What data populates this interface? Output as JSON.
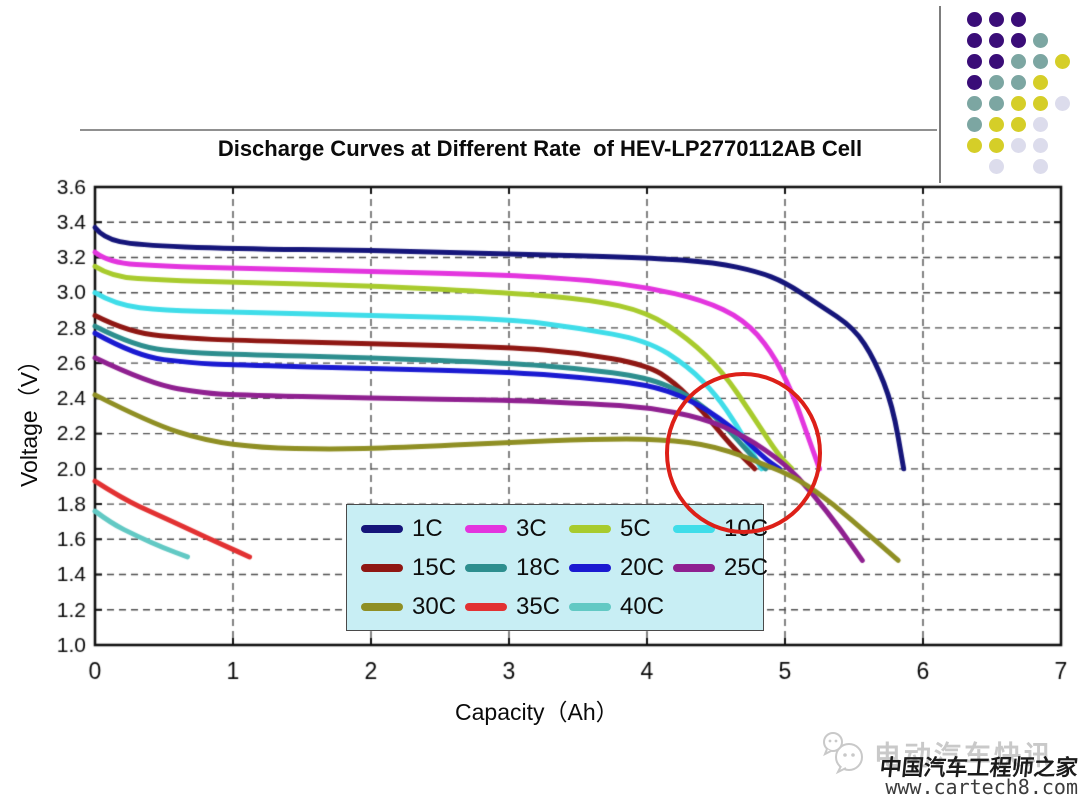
{
  "page": {
    "background_color": "#ffffff"
  },
  "header": {
    "divider_line": "horizontal-rule-above-title",
    "separator_line": "vertical-rule-top-right"
  },
  "chart_data": {
    "type": "line",
    "title": "Discharge Curves at Different Rate  of HEV-LP2770112AB Cell",
    "xlabel": "Capacity（Ah）",
    "ylabel": "Voltage（V）",
    "xlim": [
      0,
      7
    ],
    "ylim": [
      1.0,
      3.6
    ],
    "xtick_labels": [
      "0",
      "1",
      "2",
      "3",
      "4",
      "5",
      "6",
      "7"
    ],
    "ytick_labels": [
      "3.6",
      "3.4",
      "3.2",
      "3.0",
      "2.8",
      "2.6",
      "2.4",
      "2.2",
      "2.0",
      "1.8",
      "1.6",
      "1.4",
      "1.2",
      "1.0"
    ],
    "grid": "dashed",
    "grid_color": "#4d4d4d",
    "axis_color": "#111111",
    "legend_position": "inside-bottom",
    "series": [
      {
        "name": "1C",
        "color": "#15157a",
        "points": [
          [
            0,
            3.37
          ],
          [
            0.06,
            3.31
          ],
          [
            0.3,
            3.27
          ],
          [
            1,
            3.25
          ],
          [
            2,
            3.24
          ],
          [
            3,
            3.22
          ],
          [
            4,
            3.2
          ],
          [
            4.5,
            3.17
          ],
          [
            4.8,
            3.12
          ],
          [
            5.0,
            3.06
          ],
          [
            5.25,
            2.93
          ],
          [
            5.5,
            2.8
          ],
          [
            5.65,
            2.62
          ],
          [
            5.78,
            2.36
          ],
          [
            5.86,
            2.0
          ]
        ]
      },
      {
        "name": "3C",
        "color": "#e335de",
        "points": [
          [
            0,
            3.23
          ],
          [
            0.1,
            3.17
          ],
          [
            0.5,
            3.15
          ],
          [
            1,
            3.14
          ],
          [
            2,
            3.12
          ],
          [
            3,
            3.1
          ],
          [
            3.6,
            3.07
          ],
          [
            4.0,
            3.03
          ],
          [
            4.4,
            2.96
          ],
          [
            4.7,
            2.85
          ],
          [
            4.9,
            2.67
          ],
          [
            5.05,
            2.44
          ],
          [
            5.15,
            2.22
          ],
          [
            5.25,
            2.0
          ]
        ]
      },
      {
        "name": "5C",
        "color": "#a8cb2d",
        "points": [
          [
            0,
            3.15
          ],
          [
            0.12,
            3.09
          ],
          [
            0.5,
            3.07
          ],
          [
            1,
            3.06
          ],
          [
            2,
            3.04
          ],
          [
            3,
            3.0
          ],
          [
            3.6,
            2.96
          ],
          [
            4.0,
            2.89
          ],
          [
            4.3,
            2.74
          ],
          [
            4.55,
            2.55
          ],
          [
            4.75,
            2.32
          ],
          [
            4.95,
            2.08
          ],
          [
            5.05,
            2.0
          ]
        ]
      },
      {
        "name": "10C",
        "color": "#3fdde9",
        "points": [
          [
            0,
            3.0
          ],
          [
            0.15,
            2.93
          ],
          [
            0.5,
            2.9
          ],
          [
            1,
            2.89
          ],
          [
            2,
            2.87
          ],
          [
            3,
            2.85
          ],
          [
            3.5,
            2.8
          ],
          [
            4.0,
            2.73
          ],
          [
            4.3,
            2.58
          ],
          [
            4.5,
            2.42
          ],
          [
            4.65,
            2.25
          ],
          [
            4.78,
            2.07
          ],
          [
            4.83,
            2.0
          ]
        ]
      },
      {
        "name": "15C",
        "color": "#8f1713",
        "points": [
          [
            0,
            2.87
          ],
          [
            0.25,
            2.77
          ],
          [
            0.7,
            2.74
          ],
          [
            1,
            2.73
          ],
          [
            2,
            2.71
          ],
          [
            3,
            2.69
          ],
          [
            3.5,
            2.66
          ],
          [
            4.0,
            2.59
          ],
          [
            4.2,
            2.49
          ],
          [
            4.4,
            2.33
          ],
          [
            4.6,
            2.14
          ],
          [
            4.78,
            2.0
          ]
        ]
      },
      {
        "name": "18C",
        "color": "#2d8e8e",
        "points": [
          [
            0,
            2.81
          ],
          [
            0.3,
            2.69
          ],
          [
            0.7,
            2.66
          ],
          [
            1,
            2.65
          ],
          [
            2,
            2.63
          ],
          [
            3,
            2.6
          ],
          [
            3.5,
            2.57
          ],
          [
            4.0,
            2.52
          ],
          [
            4.3,
            2.42
          ],
          [
            4.55,
            2.26
          ],
          [
            4.75,
            2.08
          ],
          [
            4.86,
            2.0
          ]
        ]
      },
      {
        "name": "20C",
        "color": "#1a1ad1",
        "points": [
          [
            0,
            2.77
          ],
          [
            0.3,
            2.64
          ],
          [
            0.7,
            2.6
          ],
          [
            1,
            2.59
          ],
          [
            2,
            2.57
          ],
          [
            3,
            2.55
          ],
          [
            3.5,
            2.52
          ],
          [
            4.0,
            2.48
          ],
          [
            4.3,
            2.4
          ],
          [
            4.6,
            2.25
          ],
          [
            4.85,
            2.06
          ],
          [
            4.96,
            2.0
          ]
        ]
      },
      {
        "name": "25C",
        "color": "#8f2090",
        "points": [
          [
            0,
            2.63
          ],
          [
            0.4,
            2.48
          ],
          [
            0.8,
            2.43
          ],
          [
            1,
            2.42
          ],
          [
            2,
            2.4
          ],
          [
            3,
            2.39
          ],
          [
            3.6,
            2.37
          ],
          [
            4.0,
            2.35
          ],
          [
            4.4,
            2.29
          ],
          [
            4.7,
            2.19
          ],
          [
            5.0,
            2.03
          ],
          [
            5.2,
            1.86
          ],
          [
            5.4,
            1.66
          ],
          [
            5.56,
            1.48
          ]
        ]
      },
      {
        "name": "30C",
        "color": "#8f8f24",
        "points": [
          [
            0,
            2.42
          ],
          [
            0.4,
            2.26
          ],
          [
            0.8,
            2.16
          ],
          [
            1.2,
            2.12
          ],
          [
            1.7,
            2.11
          ],
          [
            2.2,
            2.12
          ],
          [
            3,
            2.15
          ],
          [
            3.6,
            2.17
          ],
          [
            4.1,
            2.17
          ],
          [
            4.5,
            2.13
          ],
          [
            4.9,
            2.01
          ],
          [
            5.1,
            1.94
          ],
          [
            5.35,
            1.8
          ],
          [
            5.6,
            1.63
          ],
          [
            5.82,
            1.48
          ]
        ]
      },
      {
        "name": "35C",
        "color": "#e23132",
        "points": [
          [
            0,
            1.93
          ],
          [
            0.2,
            1.83
          ],
          [
            0.45,
            1.74
          ],
          [
            0.7,
            1.65
          ],
          [
            0.95,
            1.56
          ],
          [
            1.12,
            1.5
          ]
        ]
      },
      {
        "name": "40C",
        "color": "#62c9c4",
        "points": [
          [
            0,
            1.76
          ],
          [
            0.12,
            1.69
          ],
          [
            0.3,
            1.62
          ],
          [
            0.5,
            1.55
          ],
          [
            0.67,
            1.5
          ]
        ]
      }
    ],
    "annotation_ellipse": {
      "center_ah": 4.7,
      "center_v": 2.09,
      "radius_ah": 0.57,
      "radius_v": 0.46,
      "color": "#dd2018"
    }
  },
  "legend": {
    "background": "#c8eef4",
    "border_color": "#4a4a4a",
    "labels": [
      "1C",
      "3C",
      "5C",
      "10C",
      "15C",
      "18C",
      "20C",
      "25C",
      "30C",
      "35C",
      "40C"
    ]
  },
  "decoration_dots": {
    "palette": {
      "P": "#3a0d78",
      "T": "#7ca6a2",
      "Y": "#d5ce28",
      "L": "#dcdcec"
    },
    "rows": [
      "PPP..",
      "PPPT.",
      "PPTTY",
      "PTTY.",
      "TTYYL",
      "TYYL.",
      "YYLL.",
      ".L.L."
    ]
  },
  "watermark": {
    "icon": "chat-bubbles-icon",
    "brand": "电动汽车快讯",
    "subtitle": "中国汽车工程师之家",
    "url": "www.cartech8.com"
  }
}
